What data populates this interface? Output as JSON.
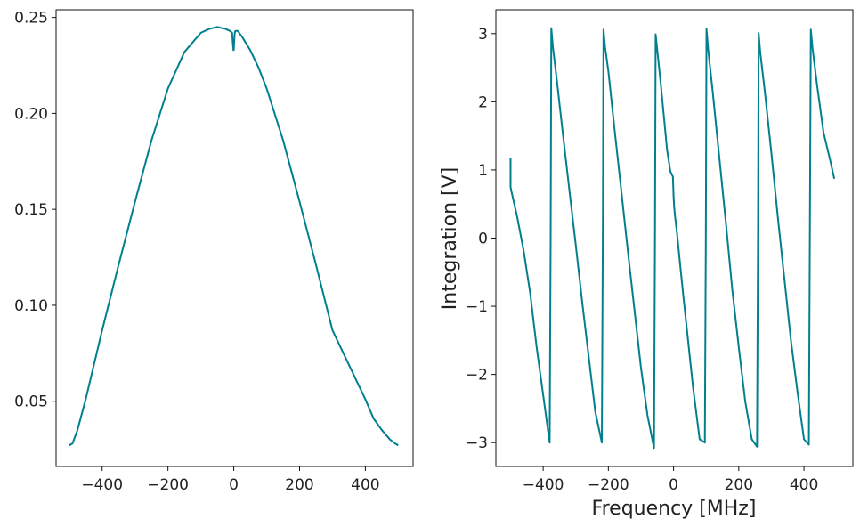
{
  "colors": {
    "series": "#00808f",
    "axis": "#111111",
    "text": "#222222"
  },
  "chart_data": [
    {
      "type": "line",
      "title": "",
      "xlabel": "",
      "ylabel": "",
      "xlim": [
        -540,
        545
      ],
      "ylim": [
        0.016,
        0.254
      ],
      "xticks": [
        -400,
        -200,
        0,
        200,
        400
      ],
      "yticks": [
        0.05,
        0.1,
        0.15,
        0.2,
        0.25
      ],
      "xtick_labels": [
        "−400",
        "−200",
        "0",
        "200",
        "400"
      ],
      "ytick_labels": [
        "0.05",
        "0.10",
        "0.15",
        "0.20",
        "0.25"
      ],
      "grid": false,
      "series": [
        {
          "x": [
            -500,
            -490,
            -475,
            -450,
            -425,
            -400,
            -350,
            -300,
            -250,
            -200,
            -150,
            -100,
            -75,
            -50,
            -25,
            -12,
            -5,
            -3,
            -1,
            0,
            1,
            3,
            5,
            12,
            25,
            50,
            75,
            100,
            150,
            200,
            250,
            300,
            350,
            400,
            425,
            450,
            475,
            490,
            500
          ],
          "y": [
            0.027,
            0.028,
            0.035,
            0.051,
            0.069,
            0.087,
            0.121,
            0.154,
            0.186,
            0.213,
            0.232,
            0.242,
            0.244,
            0.245,
            0.244,
            0.243,
            0.242,
            0.237,
            0.233,
            0.233,
            0.237,
            0.242,
            0.243,
            0.243,
            0.24,
            0.233,
            0.224,
            0.213,
            0.186,
            0.154,
            0.121,
            0.087,
            0.069,
            0.051,
            0.041,
            0.035,
            0.03,
            0.028,
            0.027
          ]
        }
      ]
    },
    {
      "type": "line",
      "title": "",
      "xlabel": "Frequency [MHz]",
      "ylabel": "Integration [V]",
      "xlim": [
        -545,
        550
      ],
      "ylim": [
        -3.35,
        3.35
      ],
      "xticks": [
        -400,
        -200,
        0,
        200,
        400
      ],
      "yticks": [
        -3,
        -2,
        -1,
        0,
        1,
        2,
        3
      ],
      "xtick_labels": [
        "−400",
        "−200",
        "0",
        "200",
        "400"
      ],
      "ytick_labels": [
        "−3",
        "−2",
        "−1",
        "0",
        "1",
        "2",
        "3"
      ],
      "grid": false,
      "series": [
        {
          "x": [
            -500,
            -500,
            -497,
            -480,
            -460,
            -440,
            -420,
            -400,
            -380,
            -377,
            -375,
            -370,
            -360,
            -340,
            -320,
            -300,
            -280,
            -260,
            -240,
            -220,
            -217,
            -215,
            -210,
            -200,
            -180,
            -160,
            -140,
            -120,
            -100,
            -80,
            -60,
            -57,
            -55,
            -50,
            -40,
            -30,
            -20,
            -10,
            -5,
            -2,
            0,
            2,
            5,
            10,
            20,
            30,
            40,
            60,
            80,
            96,
            99,
            101,
            106,
            120,
            140,
            160,
            180,
            200,
            220,
            240,
            256,
            259,
            261,
            266,
            280,
            300,
            320,
            340,
            360,
            380,
            400,
            415,
            418,
            421,
            426,
            440,
            460,
            480,
            493
          ],
          "y": [
            1.18,
            0.75,
            0.68,
            0.32,
            -0.18,
            -0.8,
            -1.6,
            -2.3,
            -3.0,
            0.0,
            3.08,
            2.8,
            2.4,
            1.55,
            0.72,
            -0.1,
            -0.95,
            -1.75,
            -2.55,
            -3.0,
            0.0,
            3.06,
            2.8,
            2.45,
            1.55,
            0.68,
            -0.2,
            -1.05,
            -1.9,
            -2.6,
            -3.08,
            0.0,
            2.99,
            2.76,
            2.3,
            1.8,
            1.3,
            0.98,
            0.93,
            0.9,
            0.62,
            0.45,
            0.3,
            0.1,
            -0.38,
            -0.85,
            -1.3,
            -2.2,
            -2.95,
            -3.0,
            0.0,
            3.07,
            2.78,
            2.15,
            1.2,
            0.25,
            -0.75,
            -1.6,
            -2.4,
            -2.95,
            -3.06,
            0.0,
            3.01,
            2.72,
            2.15,
            1.25,
            0.3,
            -0.6,
            -1.5,
            -2.25,
            -2.95,
            -3.03,
            0.0,
            3.06,
            2.8,
            2.25,
            1.55,
            1.15,
            0.87
          ]
        }
      ]
    }
  ]
}
